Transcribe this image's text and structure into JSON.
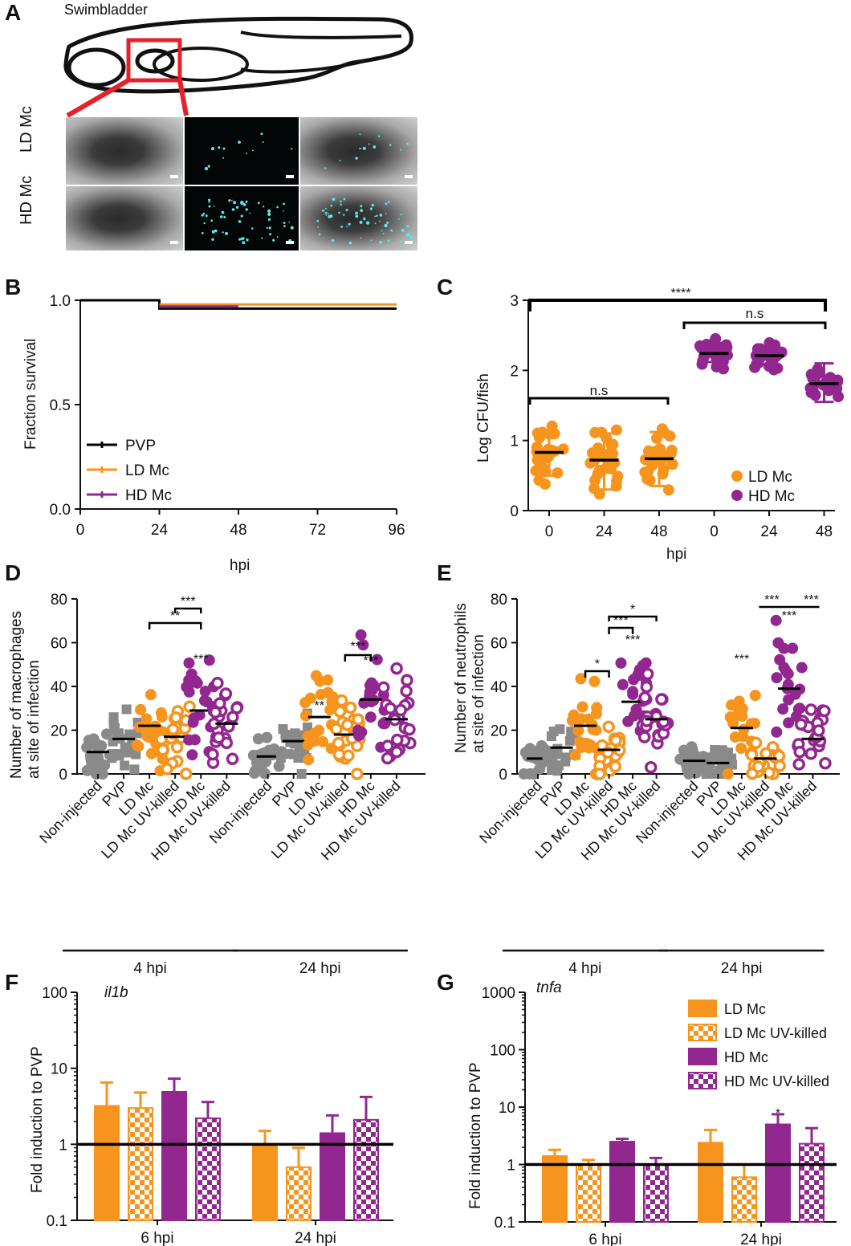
{
  "panel_labels": {
    "A": "A",
    "B": "B",
    "C": "C",
    "D": "D",
    "E": "E",
    "F": "F",
    "G": "G"
  },
  "panel_a": {
    "title": "Swimbladder",
    "row_labels": [
      "LD Mc",
      "HD Mc"
    ],
    "colors": {
      "highlight": "#e8202a",
      "fluorescence": "#5ce6e6"
    }
  },
  "colors": {
    "ld": "#f7941d",
    "hd": "#92278f",
    "gray": "#8a8a8a",
    "black": "#000000"
  },
  "chart_data": [
    {
      "id": "B",
      "type": "line",
      "ylabel": "Fraction survival",
      "xlabel": "hpi",
      "xticks": [
        "0",
        "24",
        "48",
        "72",
        "96"
      ],
      "yticks": [
        "0.0",
        "0.5",
        "1.0"
      ],
      "xlim": [
        0,
        96
      ],
      "ylim": [
        0,
        1
      ],
      "series": [
        {
          "name": "PVP",
          "color": "#000000",
          "points": [
            [
              0,
              1
            ],
            [
              24,
              1
            ],
            [
              24,
              0.96
            ],
            [
              96,
              0.96
            ]
          ]
        },
        {
          "name": "LD Mc",
          "color": "#f7941d",
          "points": [
            [
              24,
              0.98
            ],
            [
              96,
              0.98
            ]
          ]
        },
        {
          "name": "HD Mc",
          "color": "#92278f",
          "points": [
            [
              24,
              0.97
            ],
            [
              48,
              0.97
            ]
          ]
        }
      ],
      "legend": "bottom-left"
    },
    {
      "id": "C",
      "type": "scatter",
      "ylabel": "Log CFU/fish",
      "xlabel": "hpi",
      "xticks": [
        "0",
        "24",
        "48",
        "0",
        "24",
        "48"
      ],
      "yticks": [
        "0",
        "1",
        "2",
        "3"
      ],
      "ylim": [
        0,
        3
      ],
      "groups": [
        {
          "series": "LD Mc",
          "x": "0",
          "mean": 0.83,
          "sd": [
            0.5,
            1.1
          ]
        },
        {
          "series": "LD Mc",
          "x": "24",
          "mean": 0.72,
          "sd": [
            0.3,
            1.1
          ]
        },
        {
          "series": "LD Mc",
          "x": "48",
          "mean": 0.74,
          "sd": [
            0.35,
            1.12
          ]
        },
        {
          "series": "HD Mc",
          "x": "0",
          "mean": 2.24,
          "sd": [
            2.12,
            2.35
          ]
        },
        {
          "series": "HD Mc",
          "x": "24",
          "mean": 2.21,
          "sd": [
            2.08,
            2.33
          ]
        },
        {
          "series": "HD Mc",
          "x": "48",
          "mean": 1.81,
          "sd": [
            1.55,
            2.1
          ]
        }
      ],
      "annotations": [
        "****",
        "n.s",
        "n.s"
      ],
      "legend": [
        "LD Mc",
        "HD Mc"
      ]
    },
    {
      "id": "D",
      "type": "scatter",
      "ylabel_lines": [
        "Number of macrophages",
        "at site of infection"
      ],
      "yticks": [
        "0",
        "20",
        "40",
        "60",
        "80"
      ],
      "ylim": [
        0,
        80
      ],
      "categories": [
        "Non-injected",
        "PVP",
        "LD Mc",
        "LD Mc UV-killed",
        "HD Mc",
        "HD Mc UV-killed"
      ],
      "groups_label": [
        "4 hpi",
        "24 hpi"
      ],
      "means": [
        [
          10,
          16,
          22,
          17,
          29,
          23
        ],
        [
          8,
          15,
          26,
          18,
          34,
          25
        ]
      ],
      "annotations": [
        "***",
        "**",
        "***",
        "**",
        "***",
        "***"
      ]
    },
    {
      "id": "E",
      "type": "scatter",
      "ylabel_lines": [
        "Number of neutrophils",
        "at site of infection"
      ],
      "yticks": [
        "0",
        "20",
        "40",
        "60",
        "80"
      ],
      "ylim": [
        0,
        80
      ],
      "categories": [
        "Non-injected",
        "PVP",
        "LD Mc",
        "LD Mc UV-killed",
        "HD Mc",
        "HD Mc UV-killed"
      ],
      "groups_label": [
        "4 hpi",
        "24 hpi"
      ],
      "means": [
        [
          7,
          12,
          22,
          11,
          33,
          25
        ],
        [
          6,
          5,
          21,
          7,
          39,
          16
        ]
      ],
      "annotations": [
        "*",
        "***",
        "*",
        "***",
        "***",
        "***",
        "***",
        "***"
      ]
    },
    {
      "id": "F",
      "type": "bar",
      "scale": "log",
      "gene": "il1b",
      "ylabel": "Fold induction to PVP",
      "yticks": [
        "0.1",
        "1",
        "10",
        "100"
      ],
      "ylim": [
        0.1,
        100
      ],
      "categories": [
        "6 hpi",
        "24 hpi"
      ],
      "series": [
        {
          "name": "LD Mc",
          "values": [
            3.2,
            1.0
          ],
          "err": [
            6.5,
            1.5
          ]
        },
        {
          "name": "LD Mc UV-killed",
          "values": [
            3.0,
            0.5
          ],
          "err": [
            4.8,
            0.9
          ]
        },
        {
          "name": "HD Mc",
          "values": [
            4.9,
            1.4
          ],
          "err": [
            7.3,
            2.4
          ]
        },
        {
          "name": "HD Mc UV-killed",
          "values": [
            2.2,
            2.1
          ],
          "err": [
            3.6,
            4.2
          ]
        }
      ]
    },
    {
      "id": "G",
      "type": "bar",
      "scale": "log",
      "gene": "tnfa",
      "ylabel": "Fold induction to PVP",
      "yticks": [
        "0.1",
        "1",
        "10",
        "100",
        "1000"
      ],
      "ylim": [
        0.1,
        1000
      ],
      "categories": [
        "6 hpi",
        "24 hpi"
      ],
      "series": [
        {
          "name": "LD Mc",
          "values": [
            1.4,
            2.4
          ],
          "err": [
            1.8,
            4.0
          ]
        },
        {
          "name": "LD Mc UV-killed",
          "values": [
            1.0,
            0.6
          ],
          "err": [
            1.2,
            1.0
          ]
        },
        {
          "name": "HD Mc",
          "values": [
            2.5,
            5.0
          ],
          "err": [
            2.8,
            7.5
          ]
        },
        {
          "name": "HD Mc UV-killed",
          "values": [
            1.0,
            2.3
          ],
          "err": [
            1.3,
            4.3
          ]
        }
      ],
      "annotations": [
        "*"
      ],
      "legend": [
        "LD Mc",
        "LD Mc UV-killed",
        "HD Mc",
        "HD Mc UV-killed"
      ]
    }
  ]
}
